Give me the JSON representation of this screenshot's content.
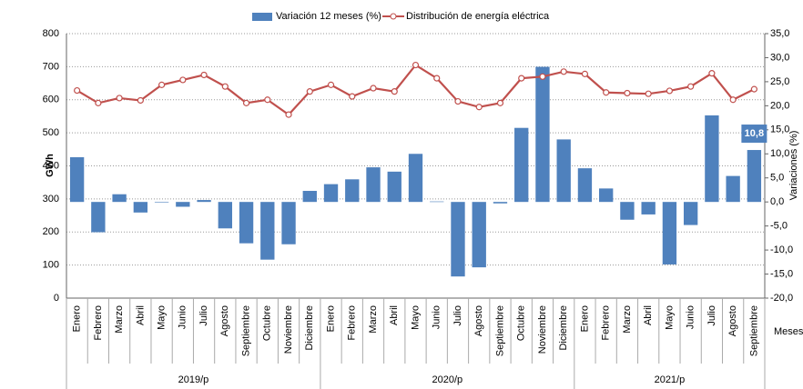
{
  "chart_data": {
    "type": "combo",
    "legend_position": "top",
    "x_label": "Meses",
    "y_label": "GWh",
    "y2_label": "Variaciones  (%)",
    "categories": [
      "Enero",
      "Febrero",
      "Marzo",
      "Abril",
      "Mayo",
      "Junio",
      "Julio",
      "Agosto",
      "Septiembre",
      "Octubre",
      "Noviembre",
      "Diciembre",
      "Enero",
      "Febrero",
      "Marzo",
      "Abril",
      "Mayo",
      "Junio",
      "Julio",
      "Agosto",
      "Septiembre",
      "Octubre",
      "Noviembre",
      "Diciembre",
      "Enero",
      "Febrero",
      "Marzo",
      "Abril",
      "Mayo",
      "Junio",
      "Julio",
      "Agosto",
      "Septiembre"
    ],
    "groups": [
      "2019/p",
      "2020/p",
      "2021/p"
    ],
    "ylim": [
      0,
      800
    ],
    "yticks": [
      0,
      100,
      200,
      300,
      400,
      500,
      600,
      700,
      800
    ],
    "y2lim": [
      -20,
      35
    ],
    "y2ticks": [
      {
        "value": -20,
        "label": "-20,0"
      },
      {
        "value": -15,
        "label": "-15,0"
      },
      {
        "value": -10,
        "label": "-10,0"
      },
      {
        "value": -5,
        "label": "-5,0"
      },
      {
        "value": 0,
        "label": "0,0"
      },
      {
        "value": 5,
        "label": "5,0"
      },
      {
        "value": 10,
        "label": "10,0"
      },
      {
        "value": 15,
        "label": "15,0"
      },
      {
        "value": 20,
        "label": "20,0"
      },
      {
        "value": 25,
        "label": "25,0"
      },
      {
        "value": 30,
        "label": "30,0"
      },
      {
        "value": 35,
        "label": "35,0"
      }
    ],
    "grid": true,
    "series": [
      {
        "name": "Variación 12 meses (%)",
        "type": "bar",
        "axis": "y2",
        "color": "#4f81bd",
        "values": [
          9.3,
          -6.3,
          1.6,
          -2.2,
          -0.1,
          -1.0,
          0.4,
          -5.5,
          -8.6,
          -12.0,
          -8.8,
          2.3,
          3.7,
          4.7,
          7.2,
          6.3,
          10.0,
          0.1,
          -15.5,
          -13.6,
          -0.3,
          15.4,
          28.1,
          13.0,
          7.0,
          2.8,
          -3.7,
          -2.6,
          -13.0,
          -4.8,
          18.0,
          5.4,
          10.8
        ],
        "value_labels": [
          null,
          null,
          null,
          null,
          null,
          null,
          null,
          null,
          null,
          null,
          null,
          null,
          null,
          null,
          null,
          null,
          null,
          null,
          null,
          null,
          null,
          null,
          null,
          null,
          null,
          null,
          null,
          null,
          null,
          null,
          null,
          null,
          "10,8"
        ]
      },
      {
        "name": "Distribución de energía eléctrica",
        "type": "line",
        "axis": "y",
        "color": "#c0504d",
        "values": [
          628,
          590,
          605,
          598,
          645,
          660,
          675,
          640,
          590,
          600,
          555,
          625,
          645,
          610,
          635,
          625,
          705,
          665,
          595,
          578,
          590,
          665,
          670,
          685,
          678,
          622,
          620,
          618,
          627,
          640,
          680,
          600,
          632
        ]
      }
    ]
  }
}
